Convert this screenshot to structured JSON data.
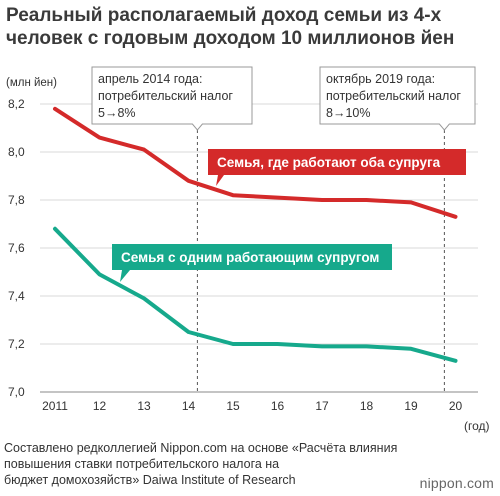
{
  "title_lines": [
    "Реальный располагаемый доход семьи из 4-х",
    "человек с годовым доходом 10 миллионов йен"
  ],
  "source_lines": [
    "Составлено редколлегией Nippon.com на основе «Расчёта влияния",
    "повышения ставки потребительского налога на",
    "бюджет домохозяйств» Daiwa Institute of Research"
  ],
  "logo": "nippon.com",
  "colors": {
    "dual_income": "#d42a2a",
    "single_income": "#16a98c",
    "grid": "#d9d9d9",
    "text": "#333333"
  },
  "chart_data": {
    "type": "line",
    "x": [
      "2011",
      "12",
      "13",
      "14",
      "15",
      "16",
      "17",
      "18",
      "19",
      "20"
    ],
    "xlabel": "(год)",
    "ylabel": "(млн йен)",
    "ylim": [
      7.0,
      8.2
    ],
    "yticks": [
      "7,0",
      "7,2",
      "7,4",
      "7,6",
      "7,8",
      "8,0",
      "8,2"
    ],
    "grid": true,
    "series": [
      {
        "name": "Семья, где работают оба супруга",
        "values": [
          8.18,
          8.06,
          8.01,
          7.88,
          7.82,
          7.81,
          7.8,
          7.8,
          7.79,
          7.73
        ]
      },
      {
        "name": "Семья с одним работающим супругом",
        "values": [
          7.68,
          7.49,
          7.39,
          7.25,
          7.2,
          7.2,
          7.19,
          7.19,
          7.18,
          7.13
        ]
      }
    ],
    "annotations": [
      {
        "at_index": 3.2,
        "lines": [
          "апрель 2014 года:",
          "потребительский налог",
          "5→8%"
        ]
      },
      {
        "at_index": 8.75,
        "lines": [
          "октябрь 2019 года:",
          "потребительский налог",
          "8→10%"
        ]
      }
    ]
  }
}
